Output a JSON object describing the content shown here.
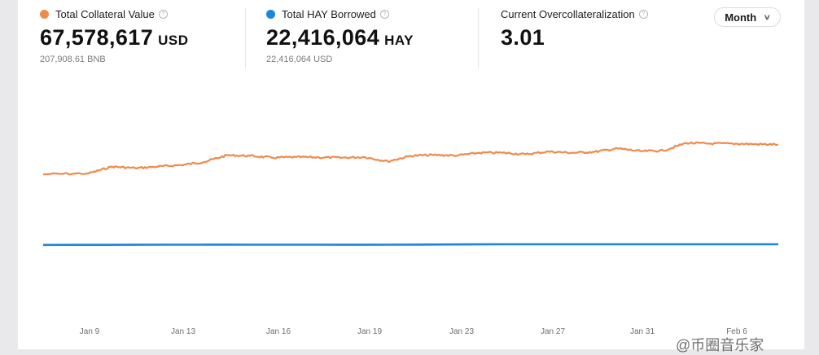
{
  "metrics": [
    {
      "label": "Total Collateral Value",
      "value": "67,578,617",
      "unit": "USD",
      "sub": "207,908.61 BNB",
      "color": "#f08a4b",
      "icon": "info-icon"
    },
    {
      "label": "Total HAY Borrowed",
      "value": "22,416,064",
      "unit": "HAY",
      "sub": "22,416,064 USD",
      "color": "#1a86e0",
      "icon": "info-icon"
    },
    {
      "label": "Current Overcollateralization",
      "value": "3.01",
      "icon": "info-icon"
    }
  ],
  "period_select": {
    "label": "Month",
    "icon": "chevron-down-icon"
  },
  "watermark": "@币圈音乐家",
  "chart_data": {
    "type": "line",
    "x_ticks": [
      "Jan 9",
      "Jan 13",
      "Jan 16",
      "Jan 19",
      "Jan 23",
      "Jan 27",
      "Jan 31",
      "Feb 6"
    ],
    "grid": false,
    "legend": "none",
    "series": [
      {
        "name": "Total Collateral Value",
        "color": "#f08a4b",
        "x": [
          0,
          2,
          3,
          4,
          5,
          6,
          7,
          8,
          9,
          10,
          11,
          12,
          13,
          14,
          15,
          16,
          17,
          18,
          19,
          20,
          21,
          22,
          23,
          24,
          25,
          26,
          27,
          28,
          29,
          30,
          31,
          32
        ],
        "values": [
          44.0,
          44.3,
          46.5,
          46.0,
          46.5,
          47.0,
          48.0,
          50.2,
          50.0,
          49.4,
          49.6,
          49.5,
          49.4,
          49.6,
          48.2,
          50.0,
          50.3,
          50.1,
          51.0,
          51.0,
          50.5,
          51.4,
          51.0,
          51.3,
          52.4,
          51.5,
          51.7,
          54.2,
          54.0,
          54.0,
          53.8,
          53.7
        ]
      },
      {
        "name": "Total HAY Borrowed",
        "color": "#1a86e0",
        "x": [
          0,
          8,
          14,
          20,
          32
        ],
        "values": [
          21.0,
          21.1,
          21.05,
          21.2,
          21.2
        ]
      }
    ]
  }
}
